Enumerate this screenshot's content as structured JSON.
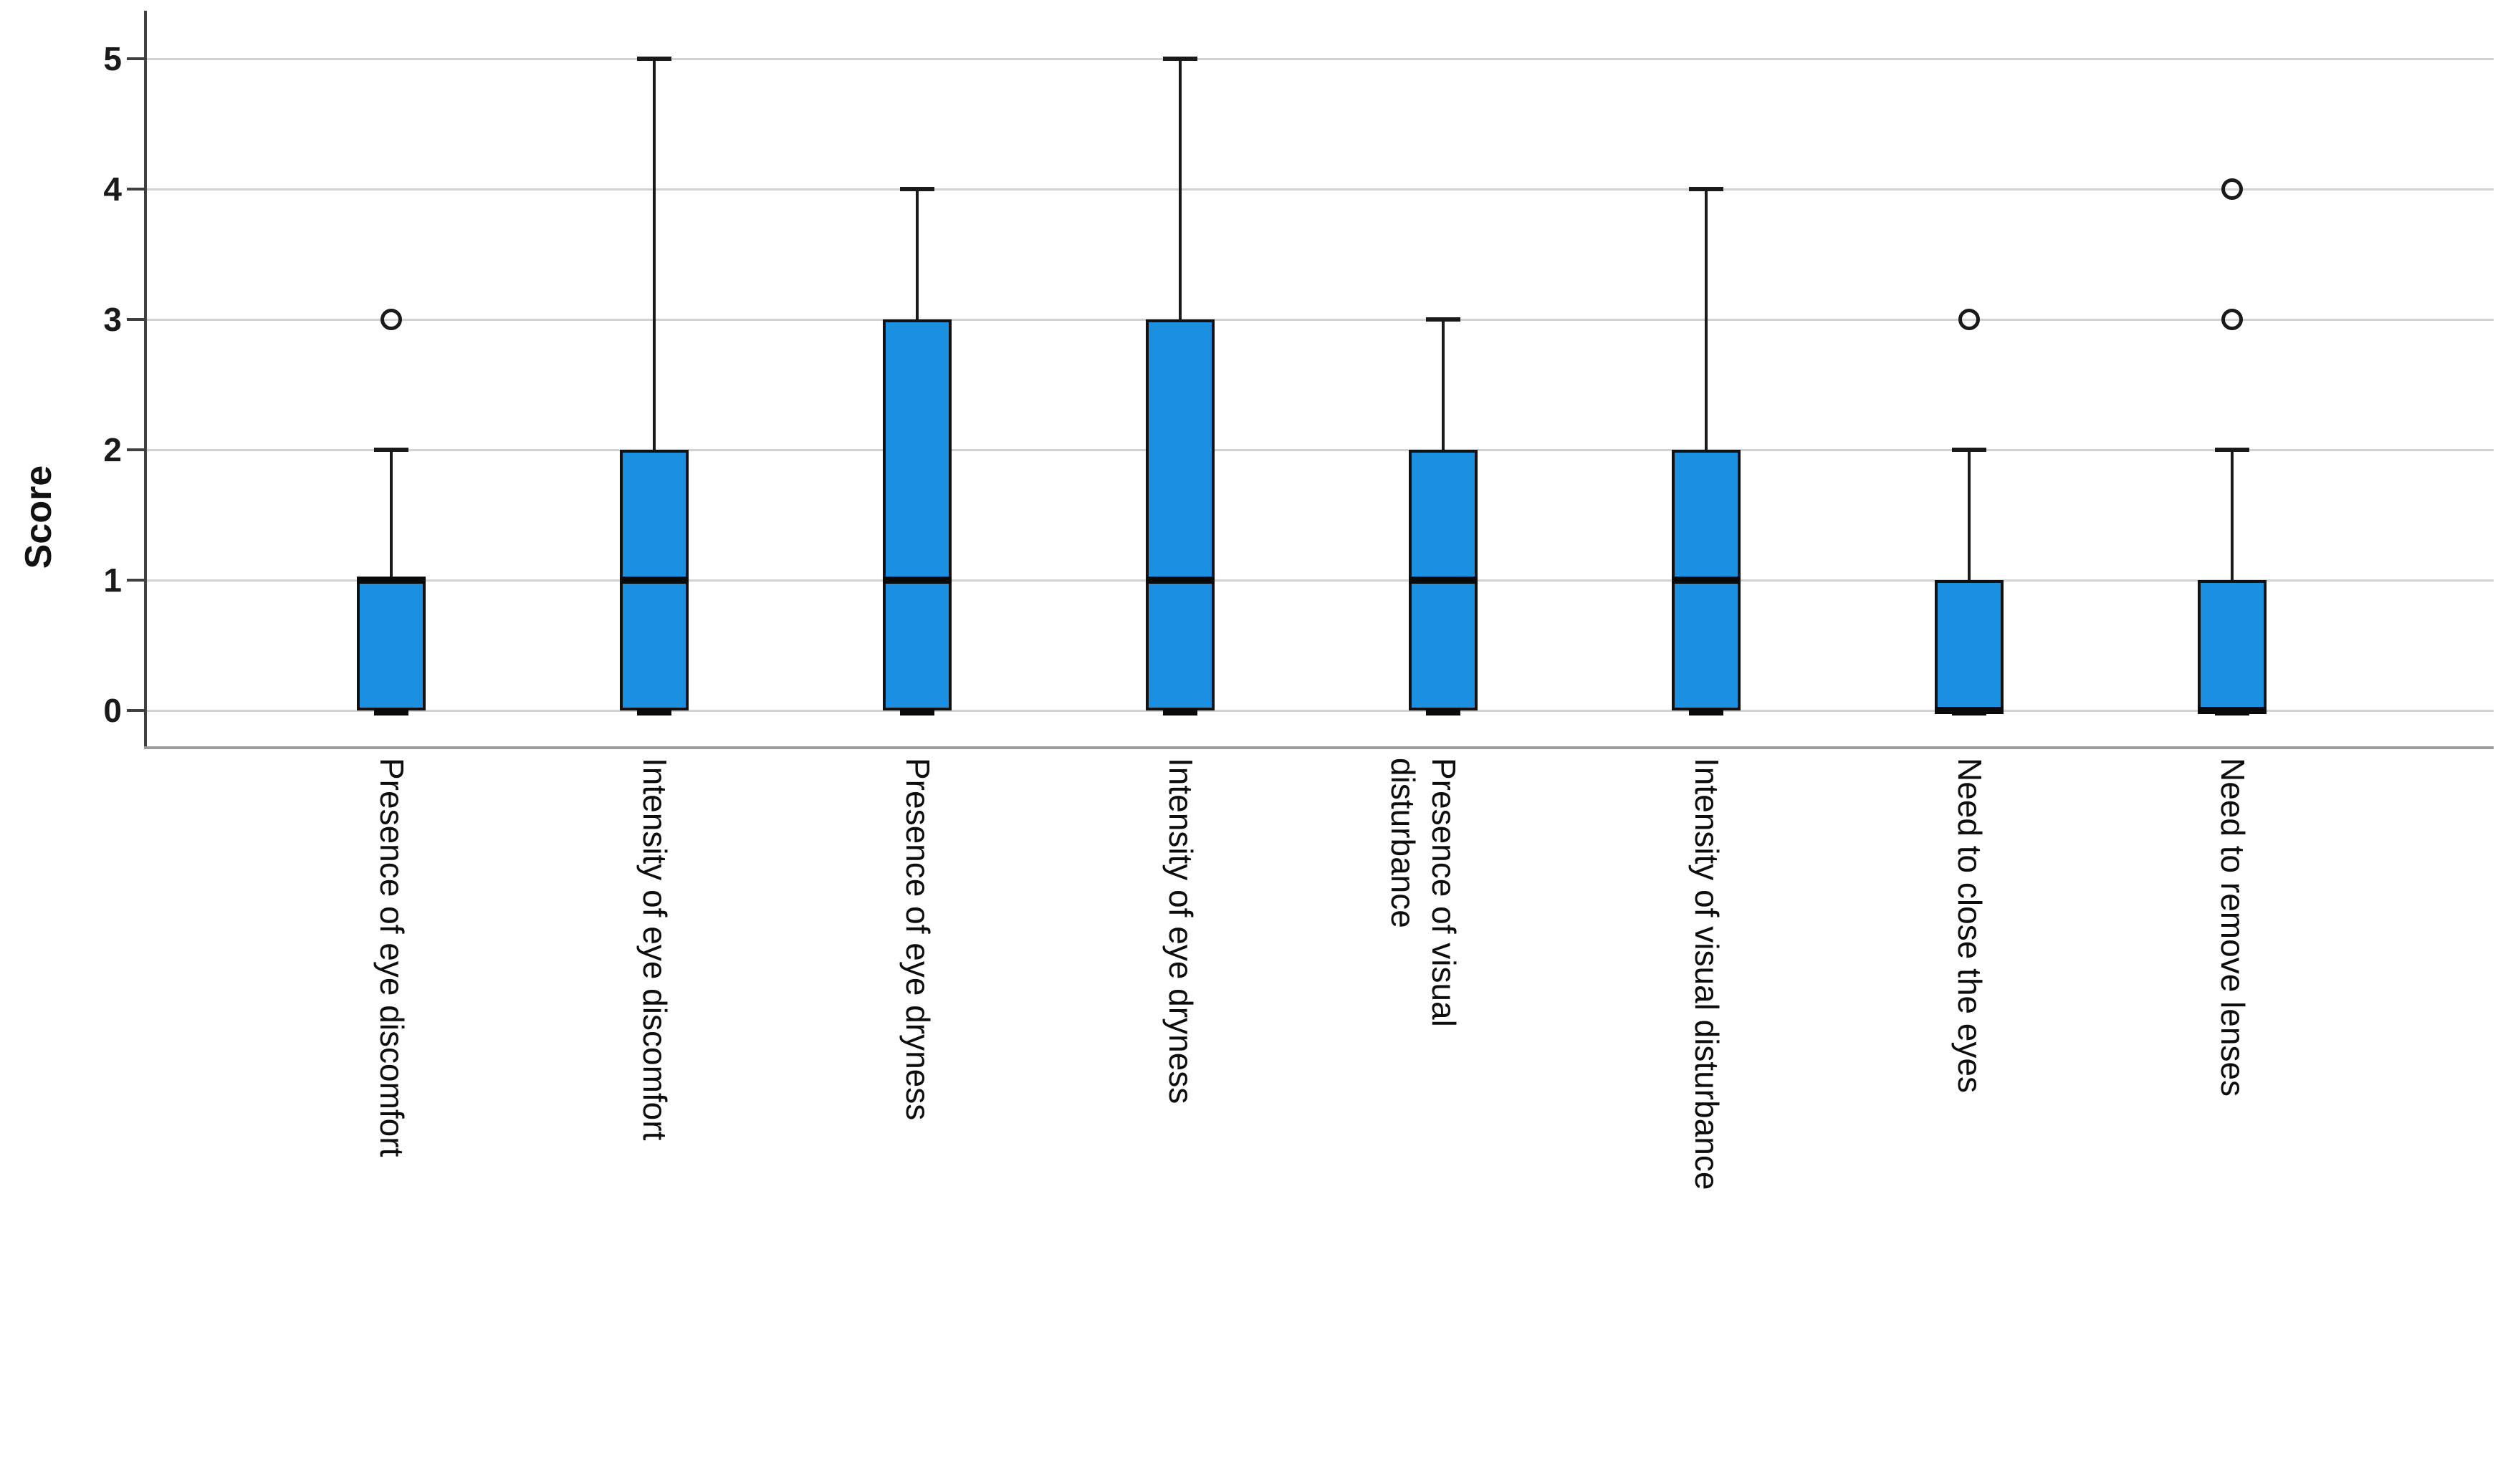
{
  "chart_data": {
    "type": "boxplot",
    "title": "",
    "xlabel": "",
    "ylabel": "Score",
    "ylim": [
      0,
      5
    ],
    "yticks": [
      0,
      1,
      2,
      3,
      4,
      5
    ],
    "grid": "horizontal",
    "legend": "none",
    "categories": [
      "Presence of eye discomfort",
      "Intensity of eye discomfort",
      "Presence of eye dryness",
      "Intensity of eye dryness",
      "Presence of visual\ndisturbance",
      "Intensity of visual disturbance",
      "Need to close the eyes",
      "Need to remove lenses"
    ],
    "series": [
      {
        "category": "Presence of eye discomfort",
        "whisker_low": 0,
        "q1": 0,
        "median": 1,
        "q3": 1,
        "whisker_high": 2,
        "outliers": [
          3
        ]
      },
      {
        "category": "Intensity of eye discomfort",
        "whisker_low": 0,
        "q1": 0,
        "median": 1,
        "q3": 2,
        "whisker_high": 5,
        "outliers": []
      },
      {
        "category": "Presence of eye dryness",
        "whisker_low": 0,
        "q1": 0,
        "median": 1,
        "q3": 3,
        "whisker_high": 4,
        "outliers": []
      },
      {
        "category": "Intensity of eye dryness",
        "whisker_low": 0,
        "q1": 0,
        "median": 1,
        "q3": 3,
        "whisker_high": 5,
        "outliers": []
      },
      {
        "category": "Presence of visual disturbance",
        "whisker_low": 0,
        "q1": 0,
        "median": 1,
        "q3": 2,
        "whisker_high": 3,
        "outliers": []
      },
      {
        "category": "Intensity of visual disturbance",
        "whisker_low": 0,
        "q1": 0,
        "median": 1,
        "q3": 2,
        "whisker_high": 4,
        "outliers": []
      },
      {
        "category": "Need to close the eyes",
        "whisker_low": 0,
        "q1": 0,
        "median": 0,
        "q3": 1,
        "whisker_high": 2,
        "outliers": [
          3
        ]
      },
      {
        "category": "Need to remove lenses",
        "whisker_low": 0,
        "q1": 0,
        "median": 0,
        "q3": 1,
        "whisker_high": 2,
        "outliers": [
          3,
          4
        ]
      }
    ],
    "colors": {
      "box_fill": "#1b90e0",
      "box_border": "#111111",
      "median": "#0a0a0a",
      "gridline": "#d2d2d2",
      "axis_y": "#404040",
      "axis_x": "#9c9c9c",
      "text": "#1a1a1a"
    }
  }
}
